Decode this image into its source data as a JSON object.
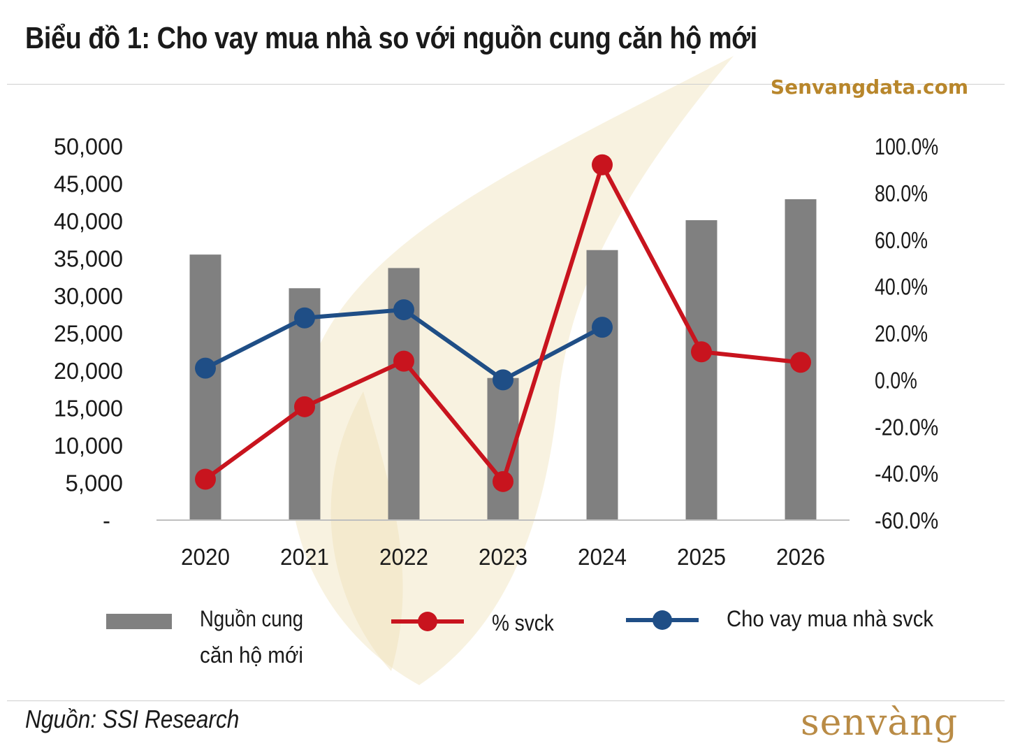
{
  "header": {
    "title": "Biểu đồ 1: Cho vay mua nhà so với nguồn cung căn hộ mới",
    "site": "Senvangdata.com"
  },
  "footer": {
    "source": "Nguồn: SSI Research",
    "logo": "senvàng"
  },
  "colors": {
    "bar": "#808080",
    "pct": "#c8141e",
    "loan": "#1f4e86",
    "watermark": "#f3e7c6"
  },
  "chart_data": {
    "type": "bar",
    "title": "Biểu đồ 1: Cho vay mua nhà so với nguồn cung căn hộ mới",
    "categories": [
      "2020",
      "2021",
      "2022",
      "2023",
      "2024",
      "2025",
      "2026"
    ],
    "left_axis": {
      "ylim": [
        0,
        50000
      ],
      "ticks": [
        0,
        5000,
        10000,
        15000,
        20000,
        25000,
        30000,
        35000,
        40000,
        45000,
        50000
      ],
      "tick_labels": [
        "-",
        "5,000",
        "10,000",
        "15,000",
        "20,000",
        "25,000",
        "30,000",
        "35,000",
        "40,000",
        "45,000",
        "50,000"
      ]
    },
    "right_axis": {
      "ylim": [
        -60,
        100
      ],
      "ticks": [
        -60,
        -40,
        -20,
        0,
        20,
        40,
        60,
        80,
        100
      ],
      "tick_labels": [
        "-60.0%",
        "-40.0%",
        "-20.0%",
        "0.0%",
        "20.0%",
        "40.0%",
        "60.0%",
        "80.0%",
        "100.0%"
      ]
    },
    "series": [
      {
        "name": "Nguồn cung căn hộ mới",
        "type": "bar",
        "axis": "left",
        "values": [
          35500,
          31000,
          33700,
          19000,
          36100,
          40100,
          42900
        ]
      },
      {
        "name": "% svck",
        "type": "line",
        "axis": "right",
        "values": [
          -42.5,
          -11.5,
          8.0,
          -43.5,
          92.0,
          12.0,
          7.5
        ]
      },
      {
        "name": "Cho vay mua nhà svck",
        "type": "line",
        "axis": "right",
        "values": [
          5.0,
          26.5,
          30.0,
          0.0,
          22.5,
          null,
          null
        ]
      }
    ],
    "legend": [
      {
        "label_lines": [
          "Nguồn cung",
          "căn hộ mới"
        ],
        "kind": "bar",
        "color_key": "bar"
      },
      {
        "label_lines": [
          "% svck"
        ],
        "kind": "line",
        "color_key": "pct"
      },
      {
        "label_lines": [
          "Cho vay mua nhà svck"
        ],
        "kind": "line",
        "color_key": "loan"
      }
    ],
    "legend_position": "bottom",
    "grid": false
  }
}
